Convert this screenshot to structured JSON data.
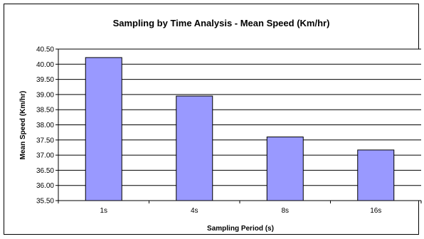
{
  "chart_data": {
    "type": "bar",
    "title": "Sampling by Time Analysis - Mean Speed (Km/hr)",
    "xlabel": "Sampling Period (s)",
    "ylabel": "Mean Speed (Km/hr)",
    "categories": [
      "1s",
      "4s",
      "8s",
      "16s"
    ],
    "values": [
      40.22,
      38.95,
      37.6,
      37.17
    ],
    "ylim": [
      35.5,
      40.5
    ],
    "yticks": [
      "35.50",
      "36.00",
      "36.50",
      "37.00",
      "37.50",
      "38.00",
      "38.50",
      "39.00",
      "39.50",
      "40.00",
      "40.50"
    ],
    "grid": true,
    "legend": "none",
    "colors": {
      "bar_fill": "#9999FF",
      "bar_stroke": "#000000",
      "plot_background": "#FFFFFF",
      "gridline": "#000000"
    }
  }
}
